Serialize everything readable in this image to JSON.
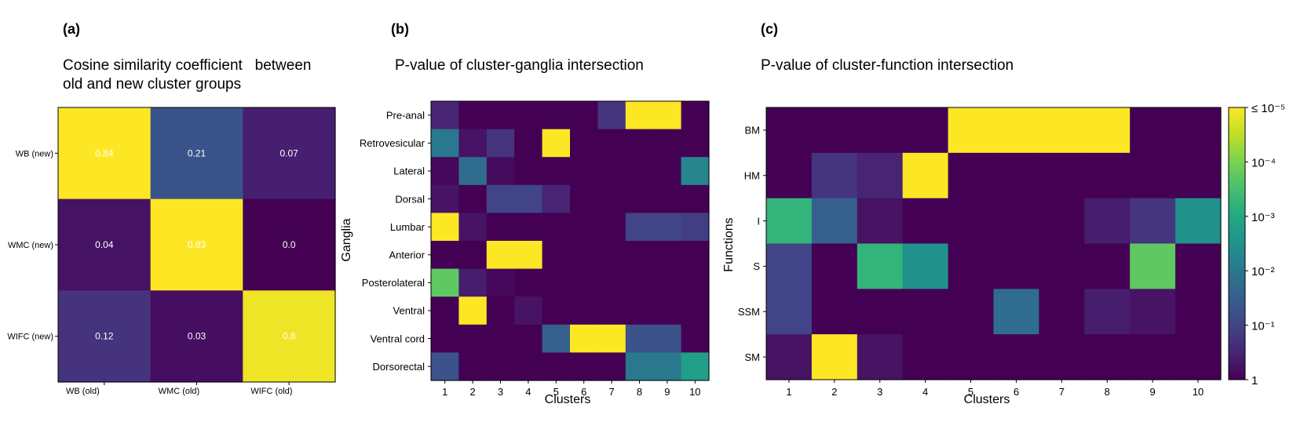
{
  "colors": {
    "viridis": [
      "#440154",
      "#482475",
      "#414487",
      "#355f8d",
      "#2a788e",
      "#21918c",
      "#22a884",
      "#44bf70",
      "#7ad151",
      "#bddf26",
      "#fde725"
    ],
    "frame": "#000000",
    "cell_text": "#ffffff"
  },
  "chart_data": [
    {
      "type": "heatmap",
      "panel_label": "(a)",
      "title_lines": [
        "Cosine similarity coefficient   between",
        "old and new cluster groups"
      ],
      "rows": [
        "WB (new)",
        "WMC (new)",
        "WIFC (new)"
      ],
      "cols": [
        "WB (old)",
        "WMC (old)",
        "WIFC (old)"
      ],
      "values": [
        [
          0.84,
          0.21,
          0.07
        ],
        [
          0.04,
          0.83,
          0.0
        ],
        [
          0.12,
          0.03,
          0.8
        ]
      ],
      "cell_labels": [
        [
          "0.84",
          "0.21",
          "0.07"
        ],
        [
          "0.04",
          "0.83",
          "0.0"
        ],
        [
          "0.12",
          "0.03",
          "0.8"
        ]
      ],
      "vrange": [
        0,
        0.82
      ]
    },
    {
      "type": "heatmap",
      "panel_label": "(b)",
      "title_lines": [
        "P-value of cluster-ganglia intersection"
      ],
      "xlabel": "Clusters",
      "ylabel": "Ganglia",
      "rows": [
        "Pre-anal",
        "Retrovesicular",
        "Lateral",
        "Dorsal",
        "Lumbar",
        "Anterior",
        "Posterolateral",
        "Ventral",
        "Ventral cord",
        "Dorsorectal"
      ],
      "cols": [
        "1",
        "2",
        "3",
        "4",
        "5",
        "6",
        "7",
        "8",
        "9",
        "10"
      ],
      "values": [
        [
          0.1,
          0,
          0,
          0,
          0,
          0,
          0.15,
          1,
          1,
          0
        ],
        [
          0.4,
          0.05,
          0.15,
          0,
          1,
          0,
          0,
          0,
          0,
          0
        ],
        [
          0.02,
          0.35,
          0.03,
          0,
          0,
          0,
          0,
          0,
          0,
          0.45
        ],
        [
          0.05,
          0,
          0.2,
          0.2,
          0.1,
          0,
          0,
          0,
          0,
          0
        ],
        [
          1,
          0.05,
          0,
          0,
          0,
          0,
          0,
          0.2,
          0.2,
          0.18
        ],
        [
          0,
          0,
          1,
          1,
          0,
          0,
          0,
          0,
          0,
          0
        ],
        [
          0.75,
          0.08,
          0.02,
          0,
          0,
          0,
          0,
          0,
          0,
          0
        ],
        [
          0,
          1,
          0,
          0.05,
          0,
          0,
          0,
          0,
          0,
          0
        ],
        [
          0,
          0,
          0,
          0,
          0.3,
          1,
          1,
          0.25,
          0.25,
          0
        ],
        [
          0.25,
          0,
          0,
          0,
          0,
          0,
          0,
          0.4,
          0.4,
          0.55
        ]
      ]
    },
    {
      "type": "heatmap",
      "panel_label": "(c)",
      "title_lines": [
        "P-value of cluster-function intersection"
      ],
      "xlabel": "Clusters",
      "ylabel": "Functions",
      "rows": [
        "BM",
        "HM",
        "I",
        "S",
        "SSM",
        "SM"
      ],
      "cols": [
        "1",
        "2",
        "3",
        "4",
        "5",
        "6",
        "7",
        "8",
        "9",
        "10"
      ],
      "values": [
        [
          0,
          0,
          0,
          0,
          1,
          1,
          1,
          1,
          0,
          0
        ],
        [
          0,
          0.15,
          0.1,
          1,
          0,
          0,
          0,
          0,
          0,
          0
        ],
        [
          0.65,
          0.3,
          0.05,
          0,
          0,
          0,
          0,
          0.08,
          0.15,
          0.5
        ],
        [
          0.2,
          0,
          0.65,
          0.5,
          0,
          0,
          0,
          0,
          0.75,
          0
        ],
        [
          0.2,
          0,
          0,
          0,
          0,
          0.35,
          0,
          0.08,
          0.05,
          0
        ],
        [
          0.05,
          1,
          0.05,
          0,
          0,
          0,
          0,
          0,
          0,
          0
        ]
      ],
      "colorbar": {
        "tick_labels": [
          "≤ 10⁻⁵",
          "10⁻⁴",
          "10⁻³",
          "10⁻²",
          "10⁻¹",
          "1"
        ],
        "scale": "log",
        "range": [
          "≤ 10⁻⁵",
          "1"
        ]
      }
    }
  ]
}
